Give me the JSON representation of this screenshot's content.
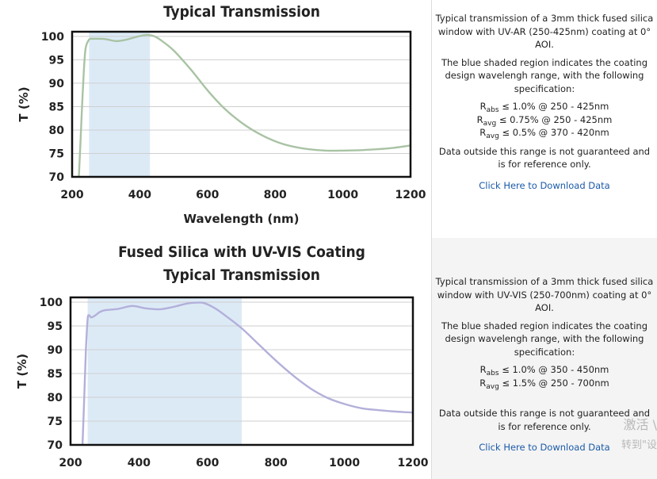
{
  "panels": [
    {
      "description": {
        "p1": "Typical transmission of a 3mm thick fused silica window with UV-AR (250-425nm) coating at 0° AOI.",
        "p2": "The blue shaded region indicates the coating design wavelengh range, with the following specification:",
        "specs": [
          {
            "sym": "R",
            "sub": "abs",
            "text": " ≤ 1.0% @ 250 - 425nm"
          },
          {
            "sym": "R",
            "sub": "avg",
            "text": " ≤ 0.75% @ 250 - 425nm"
          },
          {
            "sym": "R",
            "sub": "avg",
            "text": " ≤ 0.5% @ 370 - 420nm"
          }
        ],
        "p3": "Data outside this range is not guaranteed and is for reference only.",
        "link": "Click Here to Download Data"
      }
    },
    {
      "description": {
        "p1": "Typical transmission of a 3mm thick fused silica window with UV-VIS (250-700nm) coating at 0° AOI.",
        "p2": "The blue shaded region indicates the coating design wavelengh range, with the following specification:",
        "specs": [
          {
            "sym": "R",
            "sub": "abs",
            "text": " ≤ 1.0% @ 350 - 450nm"
          },
          {
            "sym": "R",
            "sub": "avg",
            "text": " ≤ 1.5% @ 250 - 700nm"
          }
        ],
        "p3": "Data outside this range is not guaranteed and is for reference only.",
        "link": "Click Here to Download Data"
      }
    }
  ],
  "watermark": {
    "line1": "激活 \\",
    "line2": "转到\"设"
  },
  "colors": {
    "shade": "#dceaf6",
    "curve1": "#a9c3a4",
    "curve2": "#b3b0da",
    "grid": "#cfcfcf",
    "link": "#1a5aa8"
  },
  "chart_data": [
    {
      "type": "line",
      "title": [
        "Typical Transmission"
      ],
      "xlabel": "Wavelength (nm)",
      "ylabel": "T (%)",
      "xlim": [
        200,
        1200
      ],
      "ylim": [
        70,
        101
      ],
      "xticks": [
        200,
        400,
        600,
        800,
        1000,
        1200
      ],
      "yticks": [
        70,
        75,
        80,
        85,
        90,
        95,
        100
      ],
      "grid": true,
      "shaded_range": [
        250,
        430
      ],
      "series": [
        {
          "x": [
            220,
            225,
            230,
            235,
            240,
            250,
            260,
            280,
            300,
            330,
            360,
            390,
            420,
            440,
            460,
            500,
            550,
            600,
            650,
            700,
            750,
            800,
            850,
            900,
            950,
            1000,
            1050,
            1100,
            1150,
            1200
          ],
          "y": [
            70,
            78,
            86,
            93,
            97.5,
            99.3,
            99.5,
            99.5,
            99.4,
            99,
            99.3,
            99.9,
            100.3,
            100.1,
            99.3,
            97,
            93,
            88.5,
            84.6,
            81.6,
            79.3,
            77.6,
            76.5,
            75.9,
            75.6,
            75.6,
            75.7,
            75.9,
            76.2,
            76.7
          ]
        }
      ]
    },
    {
      "type": "line",
      "title": [
        "Fused Silica with UV-VIS Coating",
        "Typical Transmission"
      ],
      "xlabel": "",
      "ylabel": "T (%)",
      "xlim": [
        200,
        1200
      ],
      "ylim": [
        70,
        101
      ],
      "xticks": [
        200,
        400,
        600,
        800,
        1000,
        1200
      ],
      "yticks": [
        70,
        75,
        80,
        85,
        90,
        95,
        100
      ],
      "grid": true,
      "shaded_range": [
        250,
        700
      ],
      "series": [
        {
          "x": [
            235,
            240,
            245,
            250,
            255,
            260,
            270,
            285,
            300,
            340,
            380,
            420,
            460,
            500,
            540,
            570,
            590,
            620,
            650,
            700,
            750,
            800,
            850,
            900,
            950,
            1000,
            1050,
            1100,
            1150,
            1200
          ],
          "y": [
            70,
            80,
            90,
            96.5,
            97.2,
            96.8,
            97.1,
            97.9,
            98.3,
            98.6,
            99.2,
            98.7,
            98.5,
            99,
            99.7,
            99.9,
            99.8,
            98.8,
            97.3,
            94.5,
            91.1,
            87.7,
            84.6,
            81.9,
            79.9,
            78.6,
            77.7,
            77.3,
            77,
            76.8
          ]
        }
      ]
    }
  ]
}
